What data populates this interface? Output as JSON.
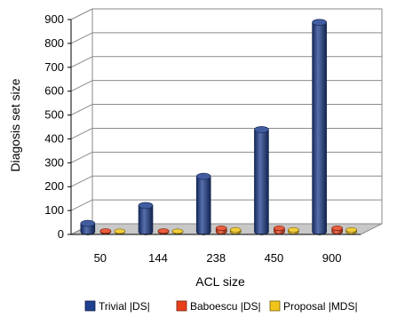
{
  "chart_data": {
    "type": "bar",
    "style": "3d-cylinder",
    "title": "",
    "xlabel": "ACL size",
    "ylabel": "Diagosis set size",
    "categories": [
      "50",
      "144",
      "238",
      "450",
      "900"
    ],
    "ylim": [
      0,
      900
    ],
    "yticks": [
      "0",
      "100",
      "200",
      "300",
      "400",
      "500",
      "600",
      "700",
      "800",
      "900"
    ],
    "grid": true,
    "legend_position": "bottom",
    "series": [
      {
        "name": "Trivial |DS|",
        "color": "#1f3f8f",
        "values": [
          35,
          110,
          232,
          428,
          877
        ]
      },
      {
        "name": "Baboescu |DS|",
        "color": "#e8401c",
        "values": [
          3,
          3,
          15,
          15,
          15
        ]
      },
      {
        "name": "Proposal |MDS|",
        "color": "#f0c419",
        "values": [
          2,
          2,
          8,
          8,
          8
        ]
      }
    ]
  }
}
